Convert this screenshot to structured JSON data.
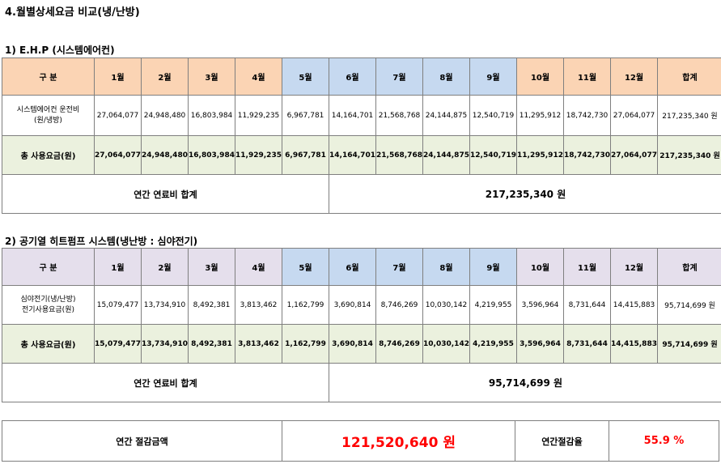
{
  "title": "4.월별상세요금 비교(냉/난방)",
  "section1": {
    "title": "1) E.H.P (시스템에어컨)",
    "header": [
      "구 분",
      "1월",
      "2월",
      "3월",
      "4월",
      "5월",
      "6월",
      "7월",
      "8월",
      "9월",
      "10월",
      "11월",
      "12월",
      "합계"
    ],
    "row1_label_line1": "시스템에어컨 운전비",
    "row1_label_line2": "(원/냉방)",
    "row1": [
      "27,064,077",
      "24,948,480",
      "16,803,984",
      "11,929,235",
      "6,967,781",
      "14,164,701",
      "21,568,768",
      "24,144,875",
      "12,540,719",
      "11,295,912",
      "18,742,730",
      "27,064,077",
      "217,235,340 원"
    ],
    "total_label": "총 사용요금(원)",
    "total": [
      "27,064,077",
      "24,948,480",
      "16,803,984",
      "11,929,235",
      "6,967,781",
      "14,164,701",
      "21,568,768",
      "24,144,875",
      "12,540,719",
      "11,295,912",
      "18,742,730",
      "27,064,077",
      "217,235,340 원"
    ],
    "annual_label": "연간 연료비 합계",
    "annual_value": "217,235,340 원"
  },
  "section2": {
    "title": "2) 공기열 히트펌프 시스템(냉난방 : 심야전기)",
    "header": [
      "구 분",
      "1월",
      "2월",
      "3월",
      "4월",
      "5월",
      "6월",
      "7월",
      "8월",
      "9월",
      "10월",
      "11월",
      "12월",
      "합계"
    ],
    "row1_label_line1": "심야전기(냉/난방)",
    "row1_label_line2": "전기사용요금(원)",
    "row1": [
      "15,079,477",
      "13,734,910",
      "8,492,381",
      "3,813,462",
      "1,162,799",
      "3,690,814",
      "8,746,269",
      "10,030,142",
      "4,219,955",
      "3,596,964",
      "8,731,644",
      "14,415,883",
      "95,714,699 원"
    ],
    "total_label": "총 사용요금(원)",
    "total": [
      "15,079,477",
      "13,734,910",
      "8,492,381",
      "3,813,462",
      "1,162,799",
      "3,690,814",
      "8,746,269",
      "10,030,142",
      "4,219,955",
      "3,596,964",
      "8,731,644",
      "14,415,883",
      "95,714,699 원"
    ],
    "annual_label": "연간 연료비 합계",
    "annual_value": "95,714,699 원"
  },
  "savings": {
    "label": "연간 절감금액",
    "value": "121,520,640 원",
    "rate_label": "연간절감율",
    "rate_value": "55.9 %"
  },
  "colors": {
    "orange_header": "#fbd4b4",
    "blue_header": "#c6d9f0",
    "purple_header": "#e5dfec",
    "green_row": "#ebf1de",
    "accent_red": "#ff0000"
  }
}
